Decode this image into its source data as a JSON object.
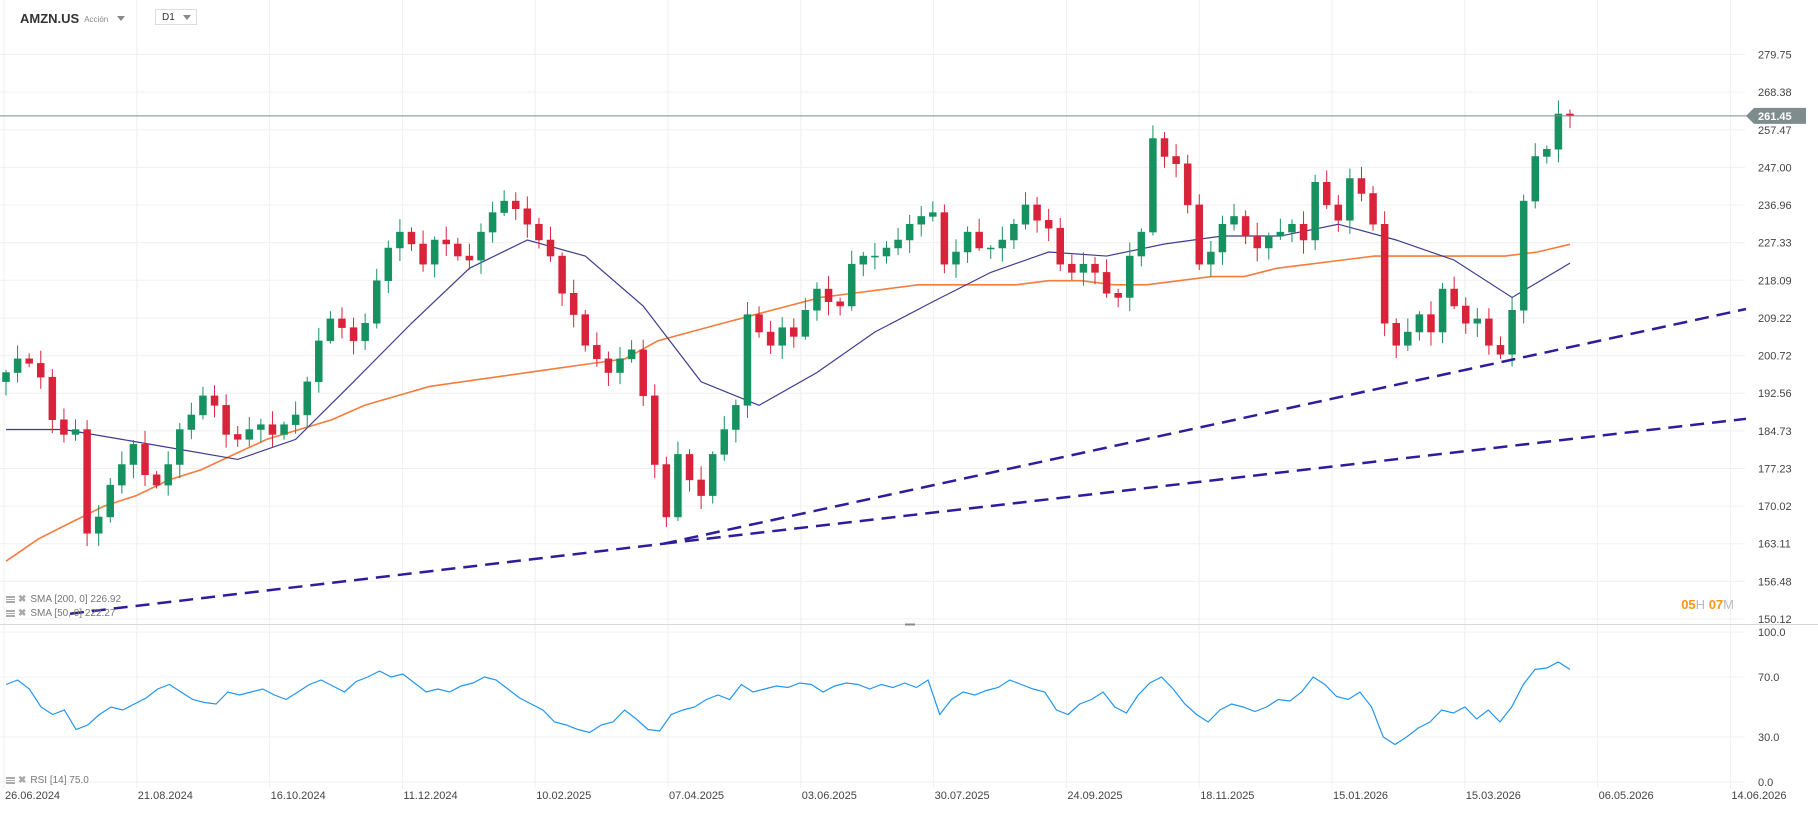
{
  "header": {
    "symbol": "AMZN.US",
    "instrument_type": "Acción",
    "timeframe": "D1"
  },
  "indicators": {
    "sma200_label": "SMA [200, 0] 226.92",
    "sma50_label": "SMA [50, 0] 222.27",
    "rsi_label": "RSI [14] 75.0"
  },
  "timer": {
    "hours": "05",
    "hours_unit": "H",
    "minutes": "07",
    "minutes_unit": "M"
  },
  "colors": {
    "up": "#169160",
    "down": "#d8233a",
    "sma200": "#f47c3c",
    "sma50": "#3d3d8f",
    "trendline": "#2e1d9b",
    "rsi": "#2196f3",
    "last_price": "#7f8c8d",
    "timer": "#f7941d"
  },
  "chart_data": {
    "type": "candlestick",
    "scale": "log",
    "grid": true,
    "price_axis": {
      "ticks": [
        "279.75",
        "268.38",
        "257.47",
        "247.00",
        "236.96",
        "227.33",
        "218.09",
        "209.22",
        "200.72",
        "192.56",
        "184.73",
        "177.23",
        "170.02",
        "163.11",
        "156.48",
        "150.12"
      ],
      "range": [
        150.12,
        279.75
      ]
    },
    "date_axis": {
      "ticks": [
        "26.06.2024",
        "21.08.2024",
        "16.10.2024",
        "11.12.2024",
        "10.02.2025",
        "07.04.2025",
        "03.06.2025",
        "30.07.2025",
        "24.09.2025",
        "18.11.2025",
        "15.01.2026",
        "15.03.2026",
        "06.05.2026",
        "14.06.2026"
      ]
    },
    "last_price": "261.45",
    "closes": [
      197,
      200,
      199,
      196,
      187,
      184,
      185,
      165,
      168,
      174,
      178,
      182,
      176,
      174,
      178,
      185,
      188,
      192,
      190,
      184,
      183,
      185,
      186,
      184,
      186,
      188,
      195,
      204,
      209,
      207,
      204,
      208,
      218,
      226,
      230,
      227,
      222,
      228,
      227,
      224,
      223,
      230,
      235,
      238,
      236,
      232,
      228,
      224,
      215,
      210,
      203,
      200,
      197,
      200,
      202,
      192,
      178,
      168,
      180,
      175,
      172,
      180,
      185,
      190,
      210,
      206,
      203,
      207,
      205,
      211,
      216,
      213,
      212,
      222,
      224,
      224,
      226,
      228,
      232,
      234,
      235,
      222,
      225,
      230,
      226,
      226,
      228,
      232,
      237,
      233,
      231,
      222,
      220,
      222,
      220,
      215,
      214,
      224,
      230,
      255,
      250,
      248,
      237,
      222,
      225,
      232,
      234,
      229,
      226,
      229,
      230,
      232,
      228,
      243,
      237,
      233,
      244,
      240,
      232,
      208,
      203,
      206,
      210,
      206,
      216,
      212,
      208,
      209,
      203,
      201,
      211,
      238,
      250,
      252,
      262,
      261.45
    ],
    "sma200": [
      160,
      164,
      167,
      170,
      172,
      175,
      177,
      180,
      183,
      185,
      187,
      190,
      192,
      194,
      195,
      196,
      197,
      198,
      199,
      200,
      201,
      201,
      201,
      200,
      199,
      200,
      201,
      202
    ],
    "sma200_tail": [
      204,
      206,
      208,
      210,
      212,
      214,
      215,
      216,
      217,
      217,
      217,
      217,
      218,
      218,
      217,
      217,
      218,
      219,
      219,
      221,
      222,
      223,
      224,
      224,
      224,
      224,
      224,
      225,
      226.92
    ],
    "sma50": [
      185,
      185,
      183,
      181,
      179,
      183,
      195,
      208,
      221,
      228,
      224,
      212,
      195,
      190,
      197,
      206,
      213,
      220,
      225,
      224,
      227,
      229,
      229,
      232,
      228,
      223,
      214,
      222.27
    ],
    "trendlines": [
      {
        "from": 151.0,
        "to": 163.1
      },
      {
        "from": 163.1,
        "to": 211.3
      },
      {
        "from": 163.1,
        "to": 187.2
      }
    ],
    "rsi": {
      "range": [
        0,
        100
      ],
      "ticks": [
        "100.0",
        "70.0",
        "30.0",
        "0.0"
      ],
      "values": [
        65,
        68,
        62,
        50,
        45,
        48,
        35,
        38,
        45,
        50,
        48,
        52,
        56,
        62,
        65,
        60,
        55,
        53,
        52,
        60,
        58,
        60,
        62,
        58,
        55,
        60,
        65,
        68,
        64,
        60,
        67,
        70,
        74,
        70,
        72,
        66,
        60,
        62,
        60,
        64,
        66,
        70,
        68,
        62,
        56,
        52,
        48,
        40,
        38,
        35,
        33,
        38,
        40,
        48,
        42,
        35,
        34,
        45,
        48,
        50,
        55,
        58,
        55,
        65,
        60,
        62,
        64,
        63,
        66,
        65,
        60,
        64,
        66,
        65,
        62,
        65,
        63,
        66,
        63,
        68,
        45,
        55,
        60,
        58,
        61,
        63,
        68,
        65,
        62,
        60,
        48,
        45,
        52,
        55,
        60,
        50,
        46,
        58,
        66,
        70,
        62,
        52,
        45,
        40,
        48,
        52,
        50,
        47,
        50,
        55,
        54,
        60,
        70,
        65,
        57,
        55,
        60,
        50,
        30,
        25,
        30,
        36,
        40,
        48,
        46,
        50,
        42,
        48,
        40,
        50,
        65,
        75,
        76,
        80,
        75
      ]
    }
  }
}
